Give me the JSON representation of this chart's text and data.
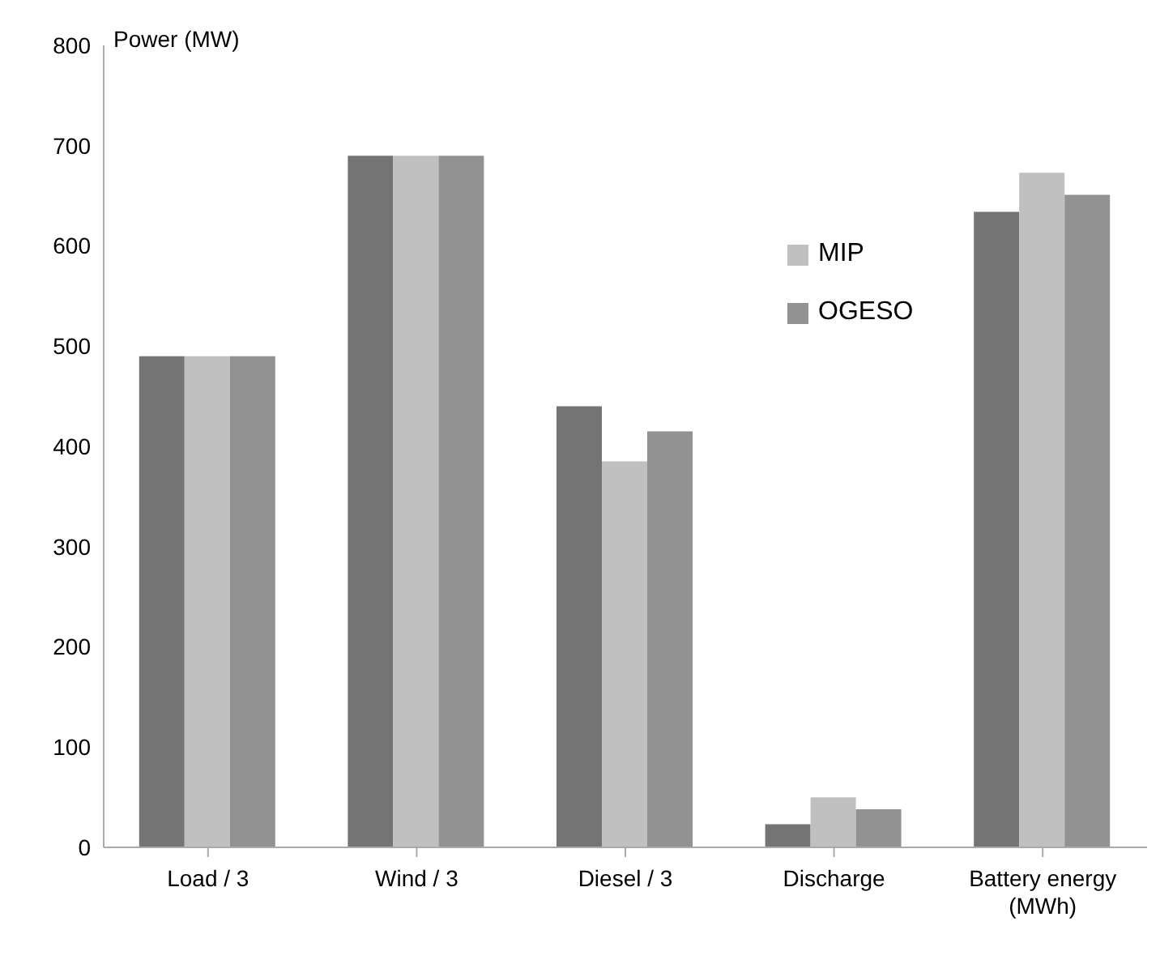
{
  "chart_data": {
    "type": "bar",
    "ylabel": "Power (MW)",
    "categories": [
      "Load / 3",
      "Wind / 3",
      "Diesel / 3",
      "Discharge",
      "Battery energy (MWh)"
    ],
    "series": [
      {
        "color": "#747474",
        "values": [
          490,
          690,
          440,
          23,
          634
        ]
      },
      {
        "name": "MIP",
        "color": "#c0c0c0",
        "values": [
          490,
          690,
          385,
          50,
          673
        ]
      },
      {
        "name": "OGESO",
        "color": "#929292",
        "values": [
          490,
          690,
          415,
          38,
          651
        ]
      }
    ],
    "ylim": [
      0,
      800
    ],
    "yticks": [
      0,
      100,
      200,
      300,
      400,
      500,
      600,
      700,
      800
    ],
    "grid": false,
    "legend": "top right"
  }
}
